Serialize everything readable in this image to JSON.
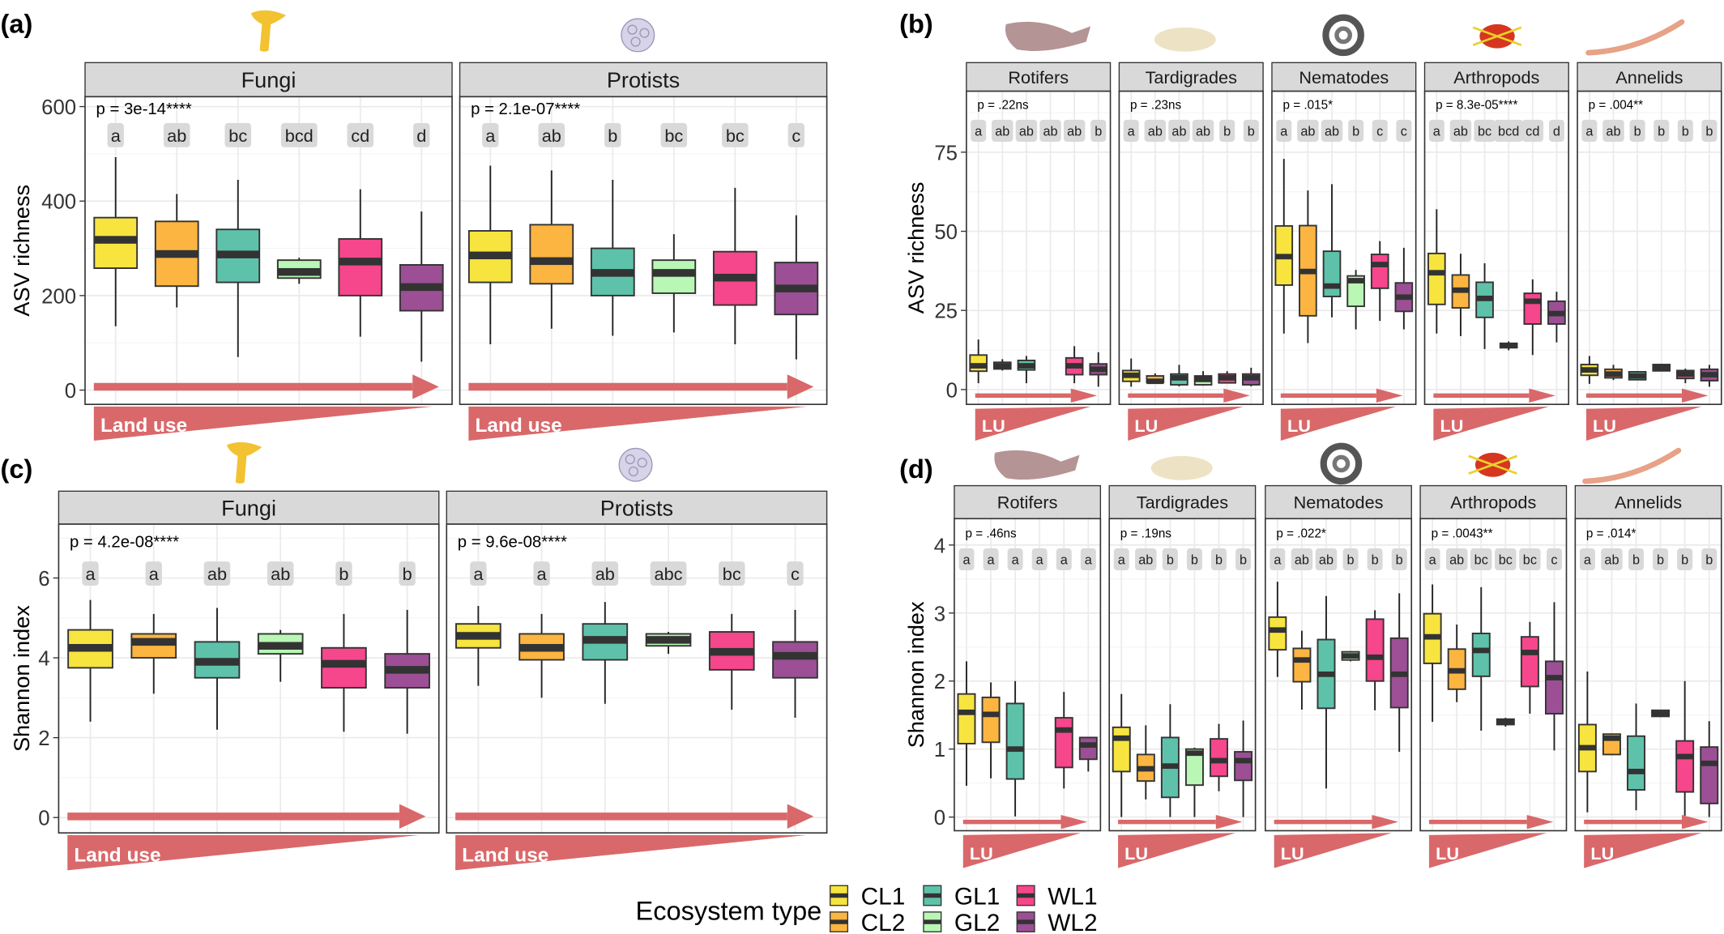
{
  "panel_labels": [
    "(a)",
    "(b)",
    "(c)",
    "(d)"
  ],
  "legend": {
    "title": "Ecosystem type",
    "items": [
      {
        "label": "CL1",
        "color": "#F7E43F"
      },
      {
        "label": "CL2",
        "color": "#FBB540"
      },
      {
        "label": "GL1",
        "color": "#5EC2AA"
      },
      {
        "label": "GL2",
        "color": "#B8F7B4"
      },
      {
        "label": "WL1",
        "color": "#F6468C"
      },
      {
        "label": "WL2",
        "color": "#9C4F95"
      }
    ]
  },
  "colors": {
    "arrow": "#D9686A",
    "strip": "#D9D9D9",
    "median": "#333333"
  },
  "icons": {
    "a": [
      "chanterelle-mushroom-icon",
      "protist-cell-icon"
    ],
    "b": [
      "rotifer-icon",
      "tardigrade-icon",
      "nematode-icon",
      "mite-icon",
      "earthworm-icon"
    ]
  },
  "chart_data": [
    {
      "panel": "(a)",
      "type": "boxplot",
      "ylabel": "ASV richness",
      "yticks": [
        0,
        200,
        400,
        600
      ],
      "ylim": [
        0,
        640
      ],
      "grid": true,
      "arrow_label": "Land use",
      "groups": [
        "CL1",
        "CL2",
        "GL1",
        "GL2",
        "WL1",
        "WL2"
      ],
      "facets": [
        {
          "title": "Fungi",
          "p": "p = 3e-14****",
          "letters": [
            "a",
            "ab",
            "bc",
            "bcd",
            "cd",
            "d"
          ],
          "boxes": [
            [
              135,
              258,
              318,
              365,
              493
            ],
            [
              175,
              220,
              288,
              357,
              415
            ],
            [
              70,
              228,
              287,
              340,
              445
            ],
            [
              225,
              237,
              250,
              275,
              280
            ],
            [
              113,
              200,
              272,
              320,
              425
            ],
            [
              60,
              168,
              218,
              265,
              378
            ]
          ]
        },
        {
          "title": "Protists",
          "p": "p = 2.1e-07****",
          "letters": [
            "a",
            "ab",
            "b",
            "bc",
            "bc",
            "c"
          ],
          "boxes": [
            [
              97,
              228,
              285,
              337,
              475
            ],
            [
              130,
              225,
              273,
              350,
              465
            ],
            [
              115,
              200,
              248,
              300,
              445
            ],
            [
              122,
              205,
              248,
              275,
              330
            ],
            [
              97,
              180,
              238,
              293,
              428
            ],
            [
              65,
              160,
              215,
              270,
              370
            ]
          ]
        }
      ]
    },
    {
      "panel": "(b)",
      "type": "boxplot",
      "ylabel": "ASV richness",
      "yticks": [
        0,
        25,
        50,
        75
      ],
      "ylim": [
        0,
        85
      ],
      "grid": true,
      "arrow_label": "LU",
      "groups": [
        "CL1",
        "CL2",
        "GL1",
        "GL2",
        "WL1",
        "WL2"
      ],
      "facets": [
        {
          "title": "Rotifers",
          "p": "p = .22ns",
          "letters": [
            "a",
            "ab",
            "ab",
            "ab",
            "ab",
            "b"
          ],
          "boxes": [
            [
              2,
              5.8,
              7.5,
              10.9,
              15.8
            ],
            [
              6,
              6.5,
              7.5,
              8.6,
              9.6
            ],
            [
              2,
              6.2,
              7.5,
              9.2,
              10.6
            ],
            null,
            [
              2,
              4.7,
              7.5,
              10,
              13.7
            ],
            [
              0.9,
              4.7,
              6.4,
              8.1,
              11.8
            ]
          ]
        },
        {
          "title": "Tardigrades",
          "p": "p = .23ns",
          "letters": [
            "a",
            "ab",
            "ab",
            "ab",
            "b",
            "b"
          ],
          "boxes": [
            [
              0.9,
              2.6,
              4.5,
              6,
              9.8
            ],
            [
              1.8,
              2.2,
              2.6,
              4.3,
              5.1
            ],
            [
              1,
              1.5,
              3.7,
              4.9,
              7.8
            ],
            [
              1.2,
              1.5,
              3.2,
              4.3,
              5.8
            ],
            [
              1.9,
              2.1,
              3.7,
              4.9,
              5.8
            ],
            [
              1,
              1.5,
              3.7,
              4.9,
              6.9
            ]
          ]
        },
        {
          "title": "Nematodes",
          "p": "p = .015*",
          "letters": [
            "a",
            "ab",
            "ab",
            "b",
            "c",
            "c"
          ],
          "boxes": [
            [
              17.7,
              33,
              42,
              51.7,
              72.9
            ],
            [
              14.7,
              23.3,
              37.3,
              51.8,
              62.9
            ],
            [
              22.8,
              29.4,
              32.7,
              43.7,
              64.9
            ],
            [
              19,
              26.3,
              34.4,
              35.9,
              37.8
            ],
            [
              21.7,
              32,
              39.5,
              42.7,
              46.9
            ],
            [
              19,
              24.7,
              29.2,
              33.7,
              44.8
            ]
          ]
        },
        {
          "title": "Arthropods",
          "p": "p = 8.3e-05****",
          "letters": [
            "a",
            "ab",
            "bc",
            "bcd",
            "cd",
            "d"
          ],
          "boxes": [
            [
              17.7,
              26.9,
              36.9,
              43,
              57
            ],
            [
              16.9,
              25.8,
              31.4,
              36.2,
              42.9
            ],
            [
              12.8,
              22.8,
              28.8,
              33.9,
              39.9
            ],
            [
              12.4,
              13.2,
              13.9,
              14.6,
              15.2
            ],
            [
              10.9,
              20.7,
              27.9,
              30.4,
              34.8
            ],
            [
              14.9,
              20.7,
              24,
              27.9,
              30.9
            ]
          ]
        },
        {
          "title": "Annelids",
          "p": "p = .004**",
          "letters": [
            "a",
            "ab",
            "b",
            "b",
            "b",
            "b"
          ],
          "boxes": [
            [
              1.8,
              4.5,
              6.2,
              7.9,
              10.6
            ],
            [
              3,
              3.7,
              4.9,
              6.4,
              7.8
            ],
            [
              3,
              3.1,
              4.3,
              5.6,
              5.8
            ],
            [
              5.8,
              5.9,
              6.9,
              7.9,
              8.1
            ],
            [
              2,
              3.5,
              4.9,
              6,
              6.6
            ],
            [
              0.9,
              2.8,
              4.7,
              6.4,
              7.8
            ]
          ]
        }
      ]
    },
    {
      "panel": "(c)",
      "type": "boxplot",
      "ylabel": "Shannon index",
      "yticks": [
        0,
        2,
        4,
        6
      ],
      "ylim": [
        0,
        7.2
      ],
      "grid": true,
      "arrow_label": "Land use",
      "groups": [
        "CL1",
        "CL2",
        "GL1",
        "GL2",
        "WL1",
        "WL2"
      ],
      "facets": [
        {
          "title": "Fungi",
          "p": "p = 4.2e-08****",
          "letters": [
            "a",
            "a",
            "ab",
            "ab",
            "b",
            "b"
          ],
          "boxes": [
            [
              2.4,
              3.75,
              4.25,
              4.7,
              5.45
            ],
            [
              3.1,
              4.0,
              4.4,
              4.6,
              5.1
            ],
            [
              2.2,
              3.5,
              3.9,
              4.4,
              5.25
            ],
            [
              3.4,
              4.1,
              4.3,
              4.6,
              4.7
            ],
            [
              2.15,
              3.25,
              3.85,
              4.25,
              5.1
            ],
            [
              2.1,
              3.25,
              3.7,
              4.1,
              5.2
            ]
          ]
        },
        {
          "title": "Protists",
          "p": "p = 9.6e-08****",
          "letters": [
            "a",
            "a",
            "ab",
            "abc",
            "bc",
            "c"
          ],
          "boxes": [
            [
              3.3,
              4.25,
              4.55,
              4.85,
              5.3
            ],
            [
              3.0,
              3.95,
              4.25,
              4.6,
              5.1
            ],
            [
              2.85,
              3.95,
              4.45,
              4.85,
              5.4
            ],
            [
              4.1,
              4.3,
              4.45,
              4.6,
              4.65
            ],
            [
              2.7,
              3.7,
              4.15,
              4.65,
              5.1
            ],
            [
              2.5,
              3.5,
              4.05,
              4.4,
              5.2
            ]
          ]
        }
      ]
    },
    {
      "panel": "(d)",
      "type": "boxplot",
      "ylabel": "Shannon index",
      "yticks": [
        0,
        1,
        2,
        3,
        4
      ],
      "ylim": [
        0,
        4.5
      ],
      "grid": true,
      "arrow_label": "LU",
      "groups": [
        "CL1",
        "CL2",
        "GL1",
        "GL2",
        "WL1",
        "WL2"
      ],
      "facets": [
        {
          "title": "Rotifers",
          "p": "p = .46ns",
          "letters": [
            "a",
            "a",
            "a",
            "a",
            "a",
            "a"
          ],
          "boxes": [
            [
              0.46,
              1.08,
              1.54,
              1.81,
              2.29
            ],
            [
              0.57,
              1.1,
              1.51,
              1.76,
              1.98
            ],
            [
              0.01,
              0.56,
              1.0,
              1.67,
              2.0
            ],
            null,
            [
              0.42,
              0.73,
              1.28,
              1.46,
              1.84
            ],
            [
              0.67,
              0.85,
              1.06,
              1.17,
              1.18
            ]
          ]
        },
        {
          "title": "Tardigrades",
          "p": "p = .19ns",
          "letters": [
            "a",
            "ab",
            "b",
            "b",
            "b",
            "b"
          ],
          "boxes": [
            [
              0,
              0.67,
              1.16,
              1.32,
              1.81
            ],
            [
              0.26,
              0.53,
              0.71,
              0.92,
              1.35
            ],
            [
              0,
              0.29,
              0.75,
              1.17,
              1.66
            ],
            [
              0,
              0.47,
              0.94,
              1.0,
              1.02
            ],
            [
              0.38,
              0.6,
              0.83,
              1.15,
              1.37
            ],
            [
              0,
              0.54,
              0.83,
              0.96,
              1.42
            ]
          ]
        },
        {
          "title": "Nematodes",
          "p": "p = .022*",
          "letters": [
            "a",
            "ab",
            "ab",
            "b",
            "b",
            "b"
          ],
          "boxes": [
            [
              2.06,
              2.46,
              2.75,
              2.94,
              3.46
            ],
            [
              1.58,
              1.99,
              2.31,
              2.48,
              2.74
            ],
            [
              0.42,
              1.6,
              2.1,
              2.61,
              3.25
            ],
            [
              2.29,
              2.31,
              2.37,
              2.43,
              2.44
            ],
            [
              1.57,
              2.0,
              2.35,
              2.91,
              3.04
            ],
            [
              0.96,
              1.61,
              2.1,
              2.63,
              3.29
            ]
          ]
        },
        {
          "title": "Arthropods",
          "p": "p = .0043**",
          "letters": [
            "a",
            "ab",
            "bc",
            "bc",
            "bc",
            "c"
          ],
          "boxes": [
            [
              1.4,
              2.26,
              2.65,
              2.99,
              3.42
            ],
            [
              1.69,
              1.88,
              2.15,
              2.47,
              2.83
            ],
            [
              1.27,
              2.07,
              2.45,
              2.7,
              3.38
            ],
            [
              1.33,
              1.36,
              1.4,
              1.44,
              1.46
            ],
            [
              1.52,
              1.92,
              2.42,
              2.65,
              2.87
            ],
            [
              0.98,
              1.52,
              2.05,
              2.29,
              3.16
            ]
          ]
        },
        {
          "title": "Annelids",
          "p": "p = .014*",
          "letters": [
            "a",
            "ab",
            "b",
            "b",
            "b",
            "b"
          ],
          "boxes": [
            [
              0.07,
              0.67,
              1.02,
              1.36,
              2.14
            ],
            [
              0.91,
              0.92,
              1.16,
              1.22,
              1.23
            ],
            [
              0.1,
              0.4,
              0.67,
              1.19,
              1.67
            ],
            [
              1.47,
              1.48,
              1.52,
              1.57,
              1.58
            ],
            [
              0.02,
              0.37,
              0.89,
              1.12,
              2.0
            ],
            [
              0,
              0.2,
              0.79,
              1.03,
              1.41
            ]
          ]
        }
      ]
    }
  ]
}
